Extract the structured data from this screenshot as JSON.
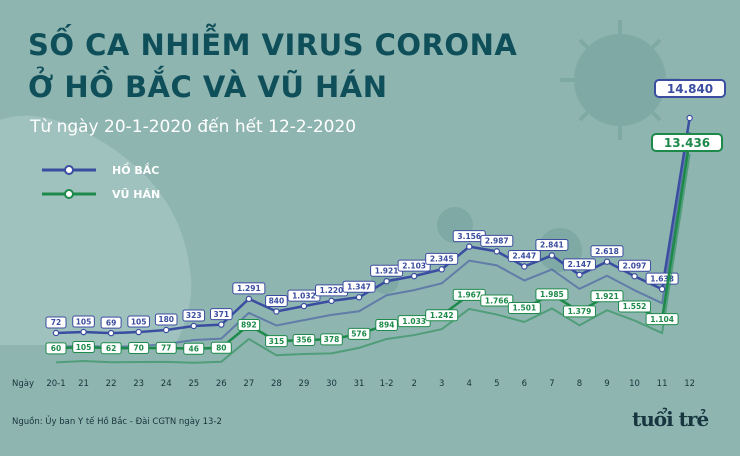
{
  "title_line1": "SỐ CA NHIỄM VIRUS CORONA",
  "title_line2": "Ở HỒ BẮC VÀ VŨ HÁN",
  "subtitle": "Từ ngày 20-1-2020 đến hết 12-2-2020",
  "source": "Nguồn: Ủy ban Y tế Hồ Bắc - Đài CGTN ngày 13-2",
  "logo": "tuổi trẻ",
  "colors": {
    "background": "#8fb5b1",
    "title": "#0f4f5a",
    "hubei": "#3a4da0",
    "wuhan": "#1d8a4a"
  },
  "icons": [
    "virus-decoration-icon",
    "head-silhouette-icon"
  ],
  "chart_data": {
    "type": "line",
    "title": "SỐ CA NHIỄM VIRUS CORONA Ở HỒ BẮC VÀ VŨ HÁN",
    "subtitle": "Từ ngày 20-1-2020 đến hết 12-2-2020",
    "xlabel": "Ngày",
    "ylabel": "",
    "categories": [
      "20-1",
      "21",
      "22",
      "23",
      "24",
      "25",
      "26",
      "27",
      "28",
      "29",
      "30",
      "31",
      "1-2",
      "2",
      "3",
      "4",
      "5",
      "6",
      "7",
      "8",
      "9",
      "10",
      "11",
      "12"
    ],
    "series": [
      {
        "name": "HỒ BẮC",
        "values": [
          72,
          105,
          69,
          105,
          180,
          323,
          371,
          1291,
          840,
          1032,
          1220,
          1347,
          1921,
          2103,
          2345,
          3156,
          2987,
          2447,
          2841,
          2147,
          2618,
          2097,
          1638,
          14840
        ],
        "labels": [
          "72",
          "105",
          "69",
          "105",
          "180",
          "323",
          "371",
          "1.291",
          "840",
          "1.032",
          "1.220",
          "1.347",
          "1.921",
          "2.103",
          "2.345",
          "3.156",
          "2.987",
          "2.447",
          "2.841",
          "2.147",
          "2.618",
          "2.097",
          "1.638",
          "14.840"
        ]
      },
      {
        "name": "VŨ HÁN",
        "values": [
          60,
          105,
          62,
          70,
          77,
          46,
          80,
          892,
          315,
          356,
          378,
          576,
          894,
          1033,
          1242,
          1967,
          1766,
          1501,
          1985,
          1379,
          1921,
          1552,
          1104,
          13436
        ],
        "labels": [
          "60",
          "105",
          "62",
          "70",
          "77",
          "46",
          "80",
          "892",
          "315",
          "356",
          "378",
          "576",
          "894",
          "1.033",
          "1.242",
          "1.967",
          "1.766",
          "1.501",
          "1.985",
          "1.379",
          "1.921",
          "1.552",
          "1.104",
          "13.436"
        ]
      }
    ],
    "legend": "top-left",
    "grid": false
  }
}
